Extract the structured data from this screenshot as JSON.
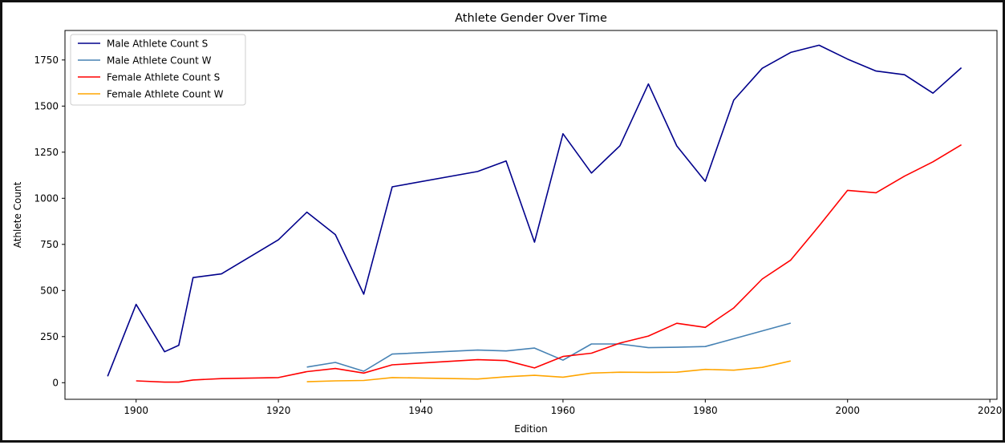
{
  "chart_data": {
    "type": "line",
    "title": "Athlete Gender Over Time",
    "xlabel": "Edition",
    "ylabel": "Athlete Count",
    "xlim": [
      1890,
      2021
    ],
    "ylim": [
      -90,
      1910
    ],
    "xticks": [
      1900,
      1920,
      1940,
      1960,
      1980,
      2000,
      2020
    ],
    "yticks": [
      0,
      250,
      500,
      750,
      1000,
      1250,
      1500,
      1750
    ],
    "grid": false,
    "legend_position": "top-left",
    "series": [
      {
        "name": "Male Athlete Count S",
        "color": "#00008b",
        "x": [
          1896,
          1900,
          1904,
          1906,
          1908,
          1912,
          1920,
          1924,
          1928,
          1932,
          1936,
          1948,
          1952,
          1956,
          1960,
          1964,
          1968,
          1972,
          1976,
          1980,
          1984,
          1988,
          1992,
          1996,
          2000,
          2004,
          2008,
          2012,
          2016
        ],
        "y": [
          35,
          425,
          168,
          203,
          570,
          590,
          775,
          925,
          803,
          480,
          1062,
          1145,
          1202,
          762,
          1350,
          1137,
          1285,
          1620,
          1284,
          1092,
          1532,
          1705,
          1791,
          1830,
          1755,
          1690,
          1670,
          1570,
          1708
        ]
      },
      {
        "name": "Male Athlete Count W",
        "color": "#4682b4",
        "x": [
          1924,
          1928,
          1932,
          1936,
          1948,
          1952,
          1956,
          1960,
          1964,
          1968,
          1972,
          1976,
          1980,
          1992
        ],
        "y": [
          85,
          110,
          62,
          155,
          177,
          172,
          188,
          122,
          210,
          210,
          190,
          192,
          196,
          323
        ]
      },
      {
        "name": "Female Athlete Count S",
        "color": "#ff0000",
        "x": [
          1900,
          1904,
          1906,
          1908,
          1912,
          1920,
          1924,
          1928,
          1932,
          1936,
          1948,
          1952,
          1956,
          1960,
          1964,
          1968,
          1972,
          1976,
          1980,
          1984,
          1988,
          1992,
          1996,
          2000,
          2004,
          2008,
          2012,
          2016
        ],
        "y": [
          10,
          3,
          3,
          15,
          22,
          28,
          60,
          77,
          52,
          97,
          125,
          120,
          80,
          142,
          160,
          215,
          253,
          322,
          300,
          405,
          562,
          665,
          850,
          1043,
          1030,
          1120,
          1198,
          1290
        ]
      },
      {
        "name": "Female Athlete Count W",
        "color": "#ffa500",
        "x": [
          1924,
          1928,
          1932,
          1936,
          1948,
          1952,
          1956,
          1960,
          1964,
          1968,
          1972,
          1976,
          1980,
          1984,
          1988,
          1992
        ],
        "y": [
          5,
          10,
          12,
          28,
          20,
          32,
          40,
          30,
          52,
          57,
          56,
          57,
          72,
          68,
          83,
          118
        ]
      }
    ]
  }
}
